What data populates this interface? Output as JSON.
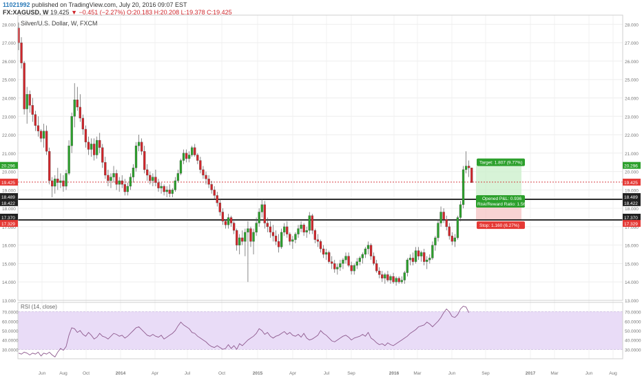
{
  "header": {
    "user": "11021992",
    "published": "published on TradingView.com, July 20, 2016 09:07 EST",
    "symbol": "FX:XAGUSD, W",
    "last": "19.425",
    "change": "▼ −0.451 (−2.27%)",
    "ohlc": "O:20.183 H:20.208 L:19.378 C:19.425"
  },
  "panel_title": "Silver/U.S. Dollar, W, FXCM",
  "rsi_title": "RSI (14, close)",
  "colors": {
    "up": "#2ca02c",
    "down": "#d0262b",
    "rsi_line": "#8e5a8e",
    "rsi_band": "#e9dcf7",
    "target": "#2ca02c",
    "stop": "#e53935"
  },
  "position_labels": {
    "target": "Target: 1.807 (9.77%)",
    "opened": "Opened P&L: 0.936",
    "rr": "Risk/Reward Ratio: 1.56",
    "stop": "Stop: 1.160 (6.27%)"
  },
  "price_badges": [
    {
      "text": "20.296",
      "color": "#2ca02c"
    },
    {
      "text": "19.425",
      "color": "#e53935"
    },
    {
      "text": "18.489",
      "color": "#222222"
    },
    {
      "text": "18.422",
      "color": "#222222"
    },
    {
      "text": "17.370",
      "color": "#222222"
    },
    {
      "text": "17.329",
      "color": "#e53935"
    }
  ],
  "chart_data": [
    {
      "type": "candlestick",
      "title": "Silver/U.S. Dollar, W, FXCM",
      "ylim": [
        13.0,
        28.5
      ],
      "y_ticks": [
        "28.000",
        "27.000",
        "26.000",
        "25.000",
        "24.000",
        "23.000",
        "22.000",
        "21.000",
        "20.000",
        "19.000",
        "18.000",
        "17.000",
        "16.000",
        "15.000",
        "14.000",
        "13.000"
      ],
      "x_ticks": [
        "Jun",
        "Aug",
        "Oct",
        "2014",
        "Apr",
        "Jul",
        "Oct",
        "2015",
        "Apr",
        "Jul",
        "Sep",
        "2016",
        "Mar",
        "Jun",
        "Sep",
        "2017",
        "Mar",
        "Jun",
        "Aug"
      ],
      "horizontal_lines": [
        18.489,
        17.37
      ],
      "current_price_line": 19.425,
      "position": {
        "entry": 18.489,
        "target": 20.296,
        "stop": 17.329
      },
      "candles_ohlc": [
        [
          27.8,
          28.1,
          26.6,
          27.0
        ],
        [
          27.0,
          27.3,
          25.6,
          25.9
        ],
        [
          25.9,
          26.0,
          23.1,
          23.4
        ],
        [
          23.4,
          24.6,
          22.6,
          24.2
        ],
        [
          24.2,
          24.4,
          23.2,
          23.6
        ],
        [
          23.6,
          24.0,
          22.7,
          23.1
        ],
        [
          23.1,
          23.3,
          22.2,
          22.5
        ],
        [
          22.5,
          23.0,
          21.9,
          22.2
        ],
        [
          22.2,
          22.3,
          21.6,
          21.8
        ],
        [
          21.8,
          22.6,
          21.3,
          22.2
        ],
        [
          22.2,
          22.5,
          20.9,
          21.1
        ],
        [
          21.1,
          21.3,
          19.3,
          19.5
        ],
        [
          19.5,
          19.7,
          18.6,
          19.2
        ],
        [
          19.2,
          19.8,
          18.8,
          19.6
        ],
        [
          19.6,
          20.2,
          19.0,
          19.4
        ],
        [
          19.4,
          19.9,
          19.1,
          19.5
        ],
        [
          19.5,
          19.8,
          18.9,
          19.2
        ],
        [
          19.2,
          20.1,
          19.0,
          19.9
        ],
        [
          19.9,
          21.7,
          19.8,
          21.4
        ],
        [
          21.4,
          23.2,
          21.0,
          23.0
        ],
        [
          23.0,
          24.8,
          22.4,
          23.9
        ],
        [
          23.9,
          24.6,
          23.3,
          23.5
        ],
        [
          23.5,
          24.2,
          22.7,
          22.9
        ],
        [
          22.9,
          23.1,
          22.0,
          22.3
        ],
        [
          22.3,
          22.5,
          21.3,
          21.6
        ],
        [
          21.6,
          21.9,
          20.9,
          21.2
        ],
        [
          21.2,
          21.8,
          20.8,
          21.5
        ],
        [
          21.5,
          21.8,
          20.6,
          20.9
        ],
        [
          20.9,
          21.9,
          20.7,
          21.7
        ],
        [
          21.7,
          22.1,
          21.0,
          21.3
        ],
        [
          21.3,
          21.5,
          20.2,
          20.5
        ],
        [
          20.5,
          20.8,
          19.6,
          19.8
        ],
        [
          19.8,
          20.1,
          19.2,
          19.5
        ],
        [
          19.5,
          19.9,
          19.1,
          19.7
        ],
        [
          19.7,
          20.3,
          19.4,
          19.9
        ],
        [
          19.9,
          20.1,
          19.0,
          19.3
        ],
        [
          19.3,
          19.7,
          18.9,
          19.5
        ],
        [
          19.5,
          19.8,
          19.1,
          19.3
        ],
        [
          19.3,
          19.6,
          18.7,
          18.9
        ],
        [
          18.9,
          19.4,
          18.7,
          19.2
        ],
        [
          19.2,
          19.9,
          19.0,
          19.7
        ],
        [
          19.7,
          20.4,
          19.4,
          20.2
        ],
        [
          20.2,
          21.6,
          20.0,
          21.4
        ],
        [
          21.4,
          22.0,
          21.1,
          21.6
        ],
        [
          21.6,
          21.8,
          20.9,
          21.1
        ],
        [
          21.1,
          21.4,
          19.9,
          20.1
        ],
        [
          20.1,
          20.4,
          19.5,
          19.8
        ],
        [
          19.8,
          20.0,
          19.3,
          19.5
        ],
        [
          19.5,
          19.9,
          19.2,
          19.7
        ],
        [
          19.7,
          20.1,
          19.2,
          19.4
        ],
        [
          19.4,
          19.6,
          18.9,
          19.1
        ],
        [
          19.1,
          19.4,
          18.8,
          19.2
        ],
        [
          19.2,
          19.3,
          18.7,
          18.9
        ],
        [
          18.9,
          19.2,
          18.6,
          19.0
        ],
        [
          19.0,
          19.3,
          18.6,
          18.8
        ],
        [
          18.8,
          19.1,
          18.6,
          19.0
        ],
        [
          19.0,
          19.7,
          18.9,
          19.5
        ],
        [
          19.5,
          20.1,
          19.4,
          19.9
        ],
        [
          19.9,
          20.7,
          19.8,
          20.6
        ],
        [
          20.6,
          21.2,
          20.4,
          21.0
        ],
        [
          21.0,
          21.2,
          20.5,
          20.7
        ],
        [
          20.7,
          21.1,
          20.5,
          20.9
        ],
        [
          20.9,
          21.4,
          20.8,
          21.3
        ],
        [
          21.3,
          21.5,
          20.8,
          20.9
        ],
        [
          20.9,
          21.0,
          20.4,
          20.6
        ],
        [
          20.6,
          20.8,
          19.9,
          20.1
        ],
        [
          20.1,
          20.3,
          19.6,
          19.8
        ],
        [
          19.8,
          20.0,
          19.3,
          19.6
        ],
        [
          19.6,
          19.8,
          19.1,
          19.3
        ],
        [
          19.3,
          19.5,
          18.8,
          19.0
        ],
        [
          19.0,
          19.2,
          18.5,
          18.7
        ],
        [
          18.7,
          18.9,
          18.1,
          18.3
        ],
        [
          18.3,
          18.5,
          17.6,
          17.8
        ],
        [
          17.8,
          18.0,
          17.1,
          17.3
        ],
        [
          17.3,
          17.4,
          16.9,
          17.1
        ],
        [
          17.1,
          17.7,
          16.9,
          17.5
        ],
        [
          17.5,
          17.6,
          17.0,
          17.2
        ],
        [
          17.2,
          17.3,
          16.6,
          16.8
        ],
        [
          16.8,
          16.9,
          15.7,
          16.0
        ],
        [
          16.0,
          16.6,
          15.5,
          16.4
        ],
        [
          16.4,
          16.8,
          16.0,
          16.2
        ],
        [
          16.2,
          16.9,
          15.4,
          16.7
        ],
        [
          16.7,
          17.3,
          14.0,
          16.9
        ],
        [
          16.9,
          17.0,
          15.9,
          16.2
        ],
        [
          16.2,
          16.9,
          15.5,
          16.7
        ],
        [
          16.7,
          17.5,
          16.5,
          17.2
        ],
        [
          17.2,
          18.0,
          17.0,
          17.8
        ],
        [
          17.8,
          18.5,
          17.5,
          18.2
        ],
        [
          18.2,
          18.4,
          16.9,
          17.2
        ],
        [
          17.2,
          17.5,
          16.7,
          17.0
        ],
        [
          17.0,
          17.3,
          16.4,
          16.7
        ],
        [
          16.7,
          17.1,
          16.2,
          16.5
        ],
        [
          16.5,
          16.8,
          16.0,
          16.2
        ],
        [
          16.2,
          16.6,
          15.6,
          15.9
        ],
        [
          15.9,
          16.9,
          15.8,
          16.7
        ],
        [
          16.7,
          17.2,
          16.5,
          17.0
        ],
        [
          17.0,
          17.3,
          16.4,
          16.6
        ],
        [
          16.6,
          16.7,
          16.0,
          16.2
        ],
        [
          16.2,
          16.5,
          15.8,
          16.3
        ],
        [
          16.3,
          16.7,
          16.1,
          16.6
        ],
        [
          16.6,
          17.1,
          16.4,
          16.9
        ],
        [
          16.9,
          17.3,
          16.7,
          17.1
        ],
        [
          17.1,
          17.2,
          16.5,
          16.7
        ],
        [
          16.7,
          17.0,
          16.4,
          16.8
        ],
        [
          16.8,
          17.8,
          16.6,
          17.6
        ],
        [
          17.6,
          17.7,
          16.6,
          16.8
        ],
        [
          16.8,
          16.9,
          16.1,
          16.3
        ],
        [
          16.3,
          16.6,
          15.9,
          16.2
        ],
        [
          16.2,
          16.3,
          15.6,
          15.8
        ],
        [
          15.8,
          16.0,
          15.3,
          15.5
        ],
        [
          15.5,
          15.8,
          15.2,
          15.6
        ],
        [
          15.6,
          15.7,
          15.0,
          15.1
        ],
        [
          15.1,
          15.4,
          14.7,
          15.0
        ],
        [
          15.0,
          15.2,
          14.5,
          14.7
        ],
        [
          14.7,
          15.0,
          14.4,
          14.8
        ],
        [
          14.8,
          15.2,
          14.6,
          15.0
        ],
        [
          15.0,
          15.3,
          14.7,
          15.2
        ],
        [
          15.2,
          15.6,
          15.0,
          15.4
        ],
        [
          15.4,
          15.6,
          14.8,
          14.9
        ],
        [
          14.9,
          15.1,
          14.4,
          14.6
        ],
        [
          14.6,
          15.0,
          14.4,
          14.9
        ],
        [
          14.9,
          15.3,
          14.7,
          15.1
        ],
        [
          15.1,
          15.4,
          14.9,
          15.3
        ],
        [
          15.3,
          15.6,
          15.0,
          15.5
        ],
        [
          15.5,
          15.9,
          15.3,
          15.8
        ],
        [
          15.8,
          16.2,
          15.5,
          16.0
        ],
        [
          16.0,
          16.1,
          15.2,
          15.4
        ],
        [
          15.4,
          15.6,
          14.9,
          15.0
        ],
        [
          15.0,
          15.2,
          14.5,
          14.6
        ],
        [
          14.6,
          14.8,
          14.2,
          14.4
        ],
        [
          14.4,
          14.6,
          14.0,
          14.2
        ],
        [
          14.2,
          14.5,
          13.9,
          14.4
        ],
        [
          14.4,
          14.6,
          14.0,
          14.1
        ],
        [
          14.1,
          14.4,
          13.9,
          14.3
        ],
        [
          14.3,
          14.5,
          13.9,
          14.0
        ],
        [
          14.0,
          14.3,
          13.8,
          14.2
        ],
        [
          14.2,
          14.3,
          13.9,
          14.0
        ],
        [
          14.0,
          14.3,
          13.9,
          14.1
        ],
        [
          14.1,
          14.6,
          13.9,
          14.5
        ],
        [
          14.5,
          15.3,
          14.3,
          15.2
        ],
        [
          15.2,
          15.5,
          14.9,
          15.3
        ],
        [
          15.3,
          15.6,
          14.9,
          15.1
        ],
        [
          15.1,
          15.9,
          15.0,
          15.7
        ],
        [
          15.7,
          15.9,
          15.2,
          15.4
        ],
        [
          15.4,
          15.7,
          15.1,
          15.6
        ],
        [
          15.6,
          15.8,
          14.9,
          15.1
        ],
        [
          15.1,
          15.4,
          14.7,
          15.2
        ],
        [
          15.2,
          15.5,
          15.0,
          15.3
        ],
        [
          15.3,
          16.2,
          15.2,
          16.0
        ],
        [
          16.0,
          16.5,
          15.7,
          16.4
        ],
        [
          16.4,
          17.4,
          16.2,
          17.2
        ],
        [
          17.2,
          18.1,
          17.0,
          17.8
        ],
        [
          17.8,
          18.0,
          17.2,
          17.4
        ],
        [
          17.4,
          17.6,
          16.8,
          17.0
        ],
        [
          17.0,
          17.2,
          16.3,
          16.5
        ],
        [
          16.5,
          16.7,
          16.0,
          16.2
        ],
        [
          16.2,
          16.6,
          15.9,
          16.4
        ],
        [
          16.4,
          17.6,
          16.3,
          17.5
        ],
        [
          17.5,
          18.4,
          17.3,
          18.2
        ],
        [
          18.2,
          20.3,
          18.0,
          20.1
        ],
        [
          20.1,
          21.1,
          19.9,
          20.3
        ],
        [
          20.3,
          20.6,
          19.7,
          20.2
        ],
        [
          20.2,
          20.2,
          19.4,
          19.4
        ]
      ]
    },
    {
      "type": "line",
      "title": "RSI (14, close)",
      "ylim": [
        20,
        80
      ],
      "y_ticks": [
        "70.0000",
        "60.0000",
        "50.0000",
        "40.0000",
        "30.0000"
      ],
      "band": [
        30,
        70
      ],
      "values": [
        26,
        25,
        27,
        26,
        24,
        26,
        25,
        27,
        23,
        26,
        25,
        27,
        24,
        22,
        27,
        31,
        29,
        33,
        45,
        53,
        52,
        48,
        50,
        46,
        44,
        48,
        45,
        41,
        43,
        47,
        44,
        43,
        41,
        44,
        47,
        46,
        44,
        45,
        42,
        44,
        47,
        50,
        53,
        54,
        51,
        48,
        45,
        44,
        46,
        44,
        43,
        45,
        41,
        43,
        45,
        47,
        50,
        55,
        59,
        56,
        54,
        52,
        48,
        47,
        44,
        42,
        40,
        38,
        35,
        33,
        32,
        34,
        32,
        30,
        31,
        35,
        31,
        34,
        30,
        36,
        34,
        37,
        40,
        42,
        44,
        47,
        52,
        50,
        46,
        48,
        44,
        42,
        44,
        45,
        47,
        49,
        46,
        48,
        45,
        44,
        46,
        43,
        47,
        42,
        40,
        41,
        43,
        45,
        50,
        47,
        45,
        42,
        39,
        38,
        40,
        42,
        44,
        45,
        43,
        40,
        42,
        43,
        44,
        46,
        44,
        48,
        42,
        40,
        37,
        35,
        36,
        34,
        37,
        35,
        34,
        36,
        38,
        40,
        42,
        44,
        47,
        49,
        51,
        54,
        55,
        56,
        59,
        57,
        54,
        57,
        60,
        64,
        69,
        73,
        70,
        65,
        64,
        67,
        73,
        76,
        75,
        69
      ]
    }
  ]
}
